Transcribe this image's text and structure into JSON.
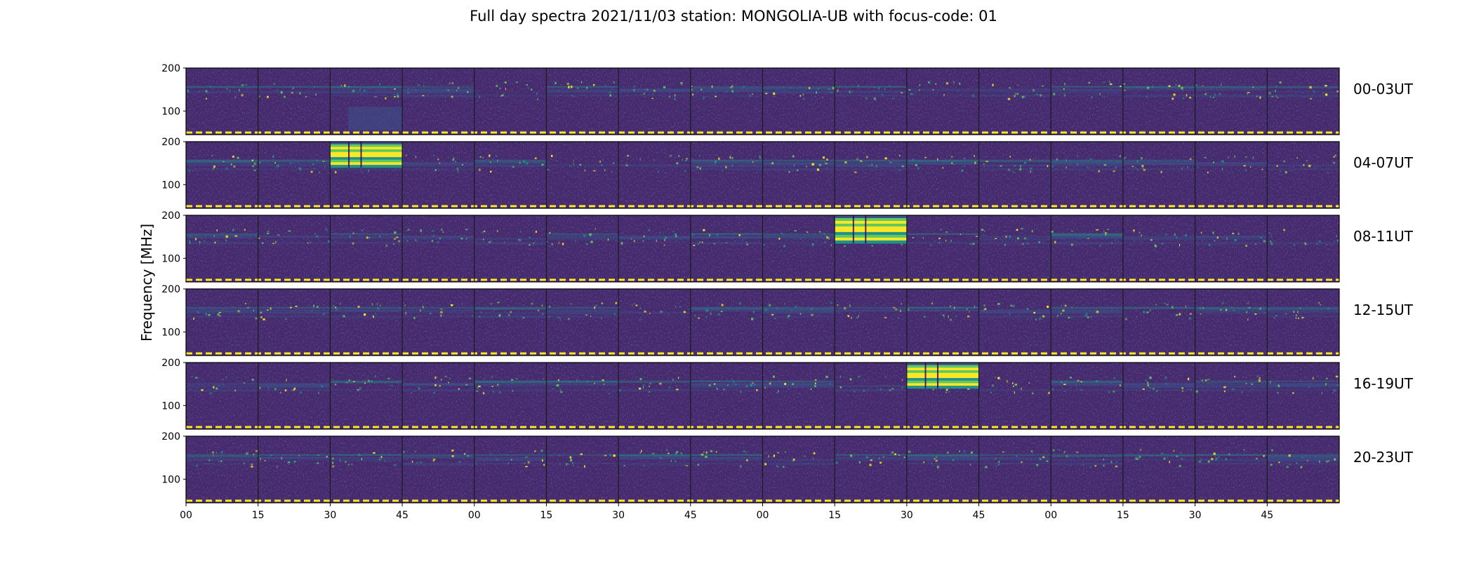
{
  "chart_data": {
    "type": "heatmap",
    "title": "Full day spectra 2021/11/03 station: MONGOLIA-UB with focus-code: 01",
    "ylabel": "Frequency [MHz]",
    "xlabel": "",
    "ylim": [
      45,
      200
    ],
    "y_ticks": [
      {
        "value": 200,
        "label": "200"
      },
      {
        "value": 100,
        "label": "100"
      }
    ],
    "x_ticks": [
      "00",
      "15",
      "30",
      "45",
      "00",
      "15",
      "30",
      "45",
      "00",
      "15",
      "30",
      "45",
      "00",
      "15",
      "30",
      "45"
    ],
    "panels_per_row": 16,
    "colormap": [
      "#440154",
      "#3b528b",
      "#21918c",
      "#5ec962",
      "#fde725"
    ],
    "background_color": "#472a6e",
    "rows": [
      {
        "label": "00-03UT",
        "events": [
          {
            "start_panel": 2,
            "end_panel": 3,
            "type": "weak",
            "fmin": 55,
            "fmax": 110
          }
        ]
      },
      {
        "label": "04-07UT",
        "events": [
          {
            "start_panel": 2.0,
            "end_panel": 3.0,
            "type": "burst",
            "fmin": 140,
            "fmax": 200
          }
        ]
      },
      {
        "label": "08-11UT",
        "events": [
          {
            "start_panel": 9.0,
            "end_panel": 10.0,
            "type": "burst",
            "fmin": 135,
            "fmax": 200
          }
        ]
      },
      {
        "label": "12-15UT",
        "events": []
      },
      {
        "label": "16-19UT",
        "events": [
          {
            "start_panel": 10.0,
            "end_panel": 11.0,
            "type": "burst",
            "fmin": 140,
            "fmax": 200
          }
        ]
      },
      {
        "label": "20-23UT",
        "events": []
      }
    ]
  }
}
